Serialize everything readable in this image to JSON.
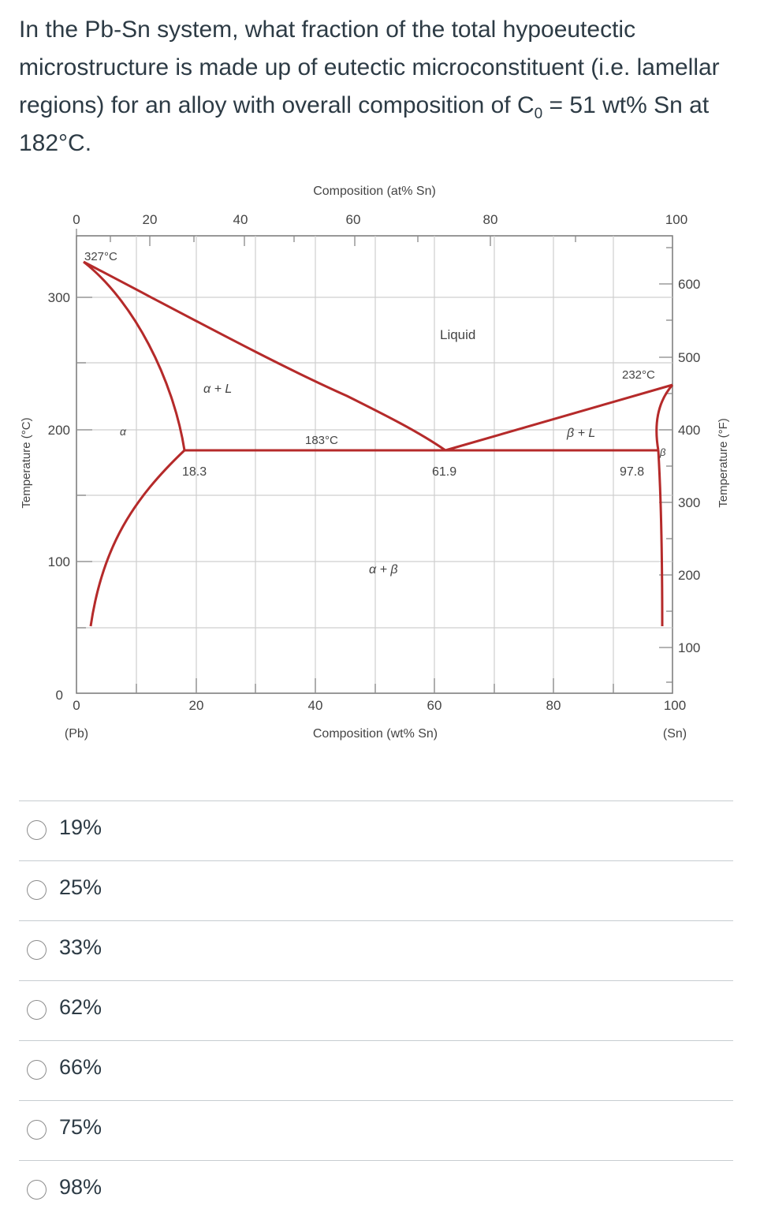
{
  "question": {
    "text_part1": "In the Pb-Sn system, what fraction of the total hypoeutectic microstructure is made up of eutectic microconstituent (i.e. lamellar regions) for an alloy with overall composition of C",
    "subscript": "0",
    "text_part2": " = 51 wt% Sn at 182°C."
  },
  "diagram": {
    "top_axis_title": "Composition (at% Sn)",
    "top_ticks": [
      "0",
      "20",
      "40",
      "60",
      "80",
      "100"
    ],
    "bottom_axis_title": "Composition (wt% Sn)",
    "bottom_ticks": [
      "0",
      "20",
      "40",
      "60",
      "80",
      "100"
    ],
    "bottom_left_label": "(Pb)",
    "bottom_right_label": "(Sn)",
    "left_axis_title": "Temperature (°C)",
    "left_ticks": [
      "300",
      "200",
      "100",
      "0"
    ],
    "right_axis_title": "Temperature (°F)",
    "right_ticks": [
      "600",
      "500",
      "400",
      "300",
      "200",
      "100"
    ],
    "annotations": {
      "pb_melt": "327°C",
      "sn_melt": "232°C",
      "eutectic_temp": "183°C",
      "alpha_limit": "18.3",
      "eutectic_comp": "61.9",
      "beta_limit": "97.8"
    },
    "regions": {
      "liquid": "Liquid",
      "alpha_liquid": "α + L",
      "beta_liquid": "β + L",
      "alpha_beta": "α + β",
      "alpha": "α",
      "beta": "β"
    },
    "line_color": "#b52a2a"
  },
  "answers": [
    {
      "label": "19%"
    },
    {
      "label": "25%"
    },
    {
      "label": "33%"
    },
    {
      "label": "62%"
    },
    {
      "label": "66%"
    },
    {
      "label": "75%"
    },
    {
      "label": "98%"
    }
  ]
}
